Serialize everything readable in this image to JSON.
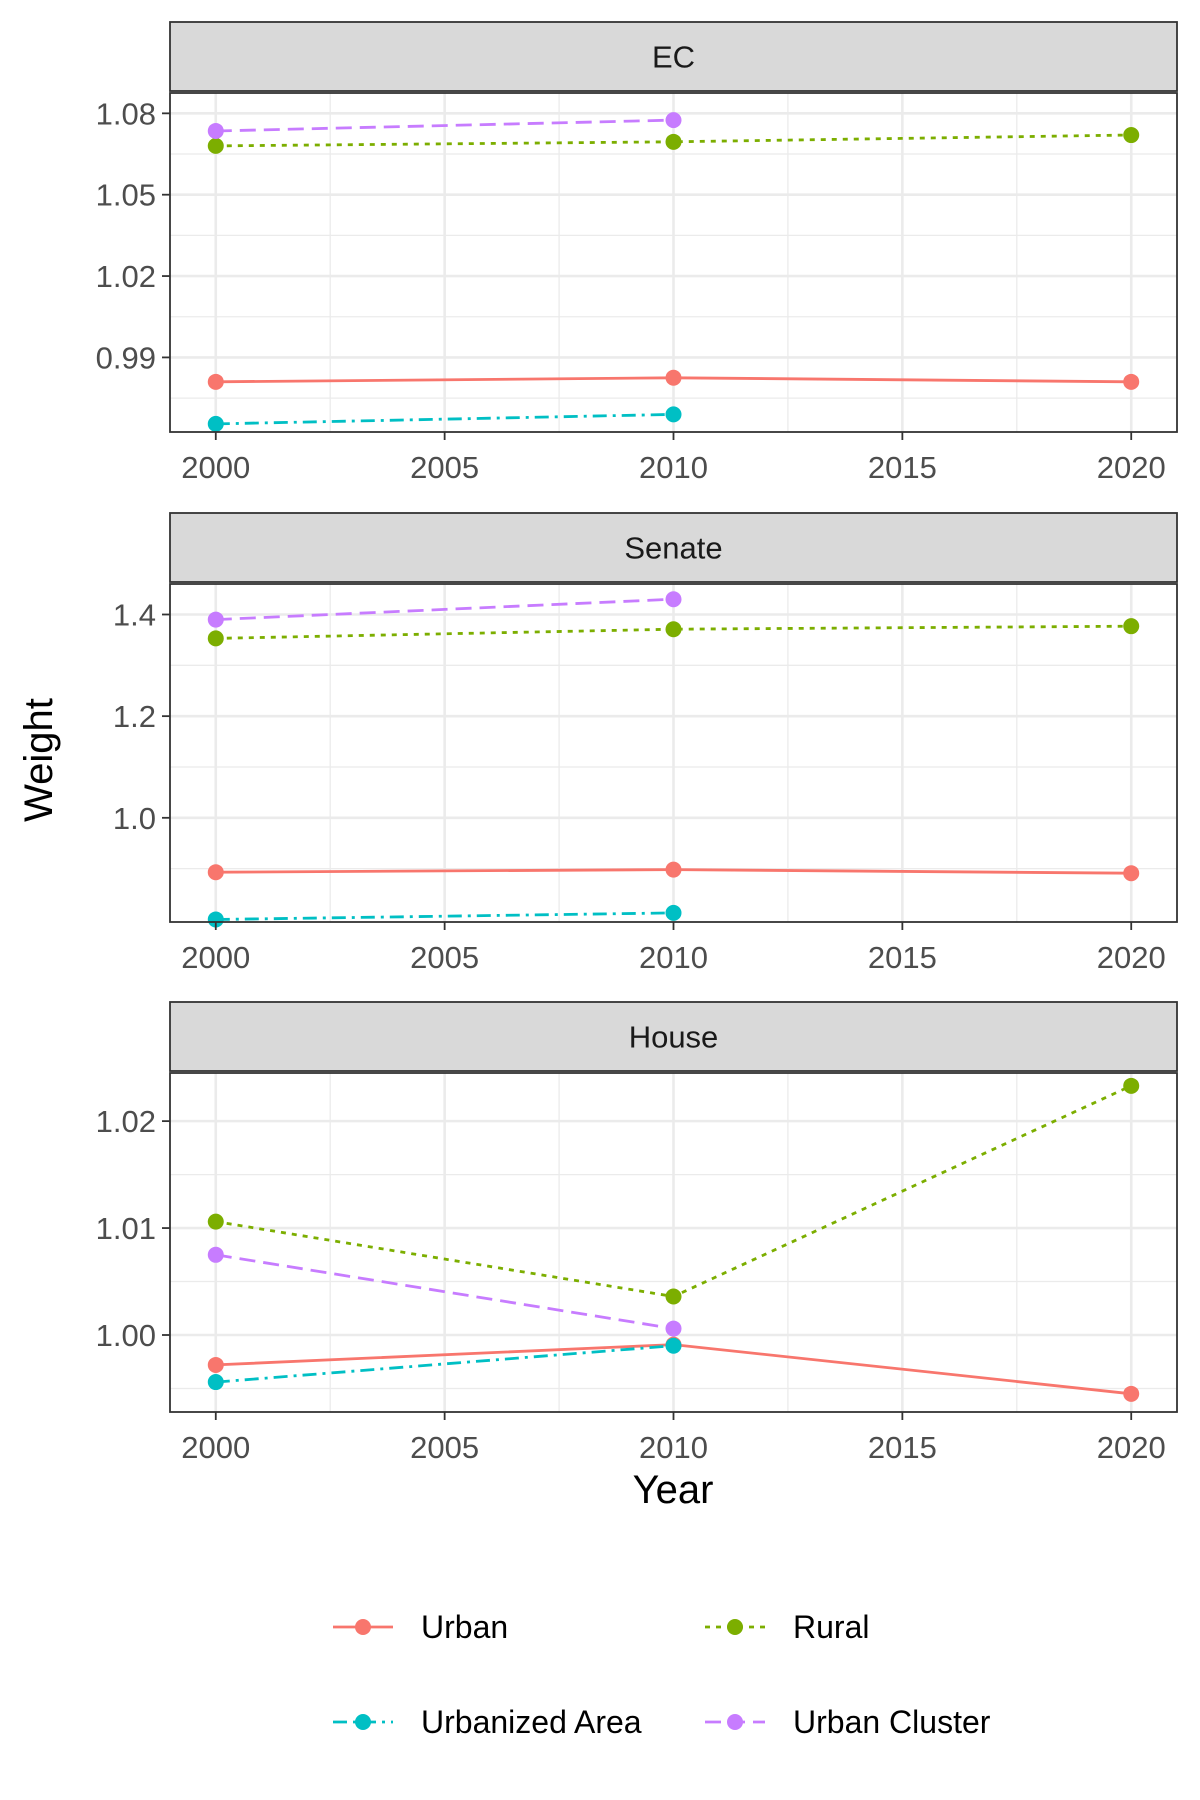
{
  "chart_data": {
    "type": "line",
    "facets": [
      "EC",
      "Senate",
      "House"
    ],
    "xlabel": "Year",
    "ylabel": "Weight",
    "x_ticks": [
      2000,
      2005,
      2010,
      2015,
      2020
    ],
    "xlim": [
      1999,
      2021
    ],
    "legend_position": "bottom",
    "series": [
      {
        "name": "Urban",
        "color": "#F8766D",
        "linestyle": "solid"
      },
      {
        "name": "Rural",
        "color": "#7CAE00",
        "linestyle": "dotted"
      },
      {
        "name": "Urbanized Area",
        "color": "#00BFC4",
        "linestyle": "dashdot"
      },
      {
        "name": "Urban Cluster",
        "color": "#C77CFF",
        "linestyle": "dashed"
      }
    ],
    "panels": [
      {
        "title": "EC",
        "ylim": [
          0.9625,
          1.0875
        ],
        "y_ticks": [
          0.99,
          1.02,
          1.05,
          1.08
        ],
        "y_tick_labels": [
          "0.99",
          "1.02",
          "1.05",
          "1.08"
        ],
        "lines": [
          {
            "series": "Urban",
            "x": [
              2000,
              2010,
              2020
            ],
            "y": [
              0.981,
              0.9825,
              0.981
            ]
          },
          {
            "series": "Rural",
            "x": [
              2000,
              2010,
              2020
            ],
            "y": [
              1.068,
              1.0695,
              1.072
            ]
          },
          {
            "series": "Urbanized Area",
            "x": [
              2000,
              2010
            ],
            "y": [
              0.9655,
              0.969
            ]
          },
          {
            "series": "Urban Cluster",
            "x": [
              2000,
              2010
            ],
            "y": [
              1.0735,
              1.0775
            ]
          }
        ]
      },
      {
        "title": "Senate",
        "ylim": [
          0.795,
          1.46
        ],
        "y_ticks": [
          1.0,
          1.2,
          1.4
        ],
        "y_tick_labels": [
          "1.0",
          "1.2",
          "1.4"
        ],
        "lines": [
          {
            "series": "Urban",
            "x": [
              2000,
              2010,
              2020
            ],
            "y": [
              0.893,
              0.898,
              0.891
            ]
          },
          {
            "series": "Rural",
            "x": [
              2000,
              2010,
              2020
            ],
            "y": [
              1.353,
              1.371,
              1.377
            ]
          },
          {
            "series": "Urbanized Area",
            "x": [
              2000,
              2010
            ],
            "y": [
              0.8,
              0.813
            ]
          },
          {
            "series": "Urban Cluster",
            "x": [
              2000,
              2010
            ],
            "y": [
              1.39,
              1.43
            ]
          }
        ]
      },
      {
        "title": "House",
        "ylim": [
          0.9928,
          1.0245
        ],
        "y_ticks": [
          1.0,
          1.01,
          1.02
        ],
        "y_tick_labels": [
          "1.00",
          "1.01",
          "1.02"
        ],
        "lines": [
          {
            "series": "Urban",
            "x": [
              2000,
              2010,
              2020
            ],
            "y": [
              0.9972,
              0.9991,
              0.9945
            ]
          },
          {
            "series": "Rural",
            "x": [
              2000,
              2010,
              2020
            ],
            "y": [
              1.0106,
              1.0036,
              1.0233
            ]
          },
          {
            "series": "Urbanized Area",
            "x": [
              2000,
              2010
            ],
            "y": [
              0.9956,
              0.999
            ]
          },
          {
            "series": "Urban Cluster",
            "x": [
              2000,
              2010
            ],
            "y": [
              1.0075,
              1.0006
            ]
          }
        ]
      }
    ]
  }
}
